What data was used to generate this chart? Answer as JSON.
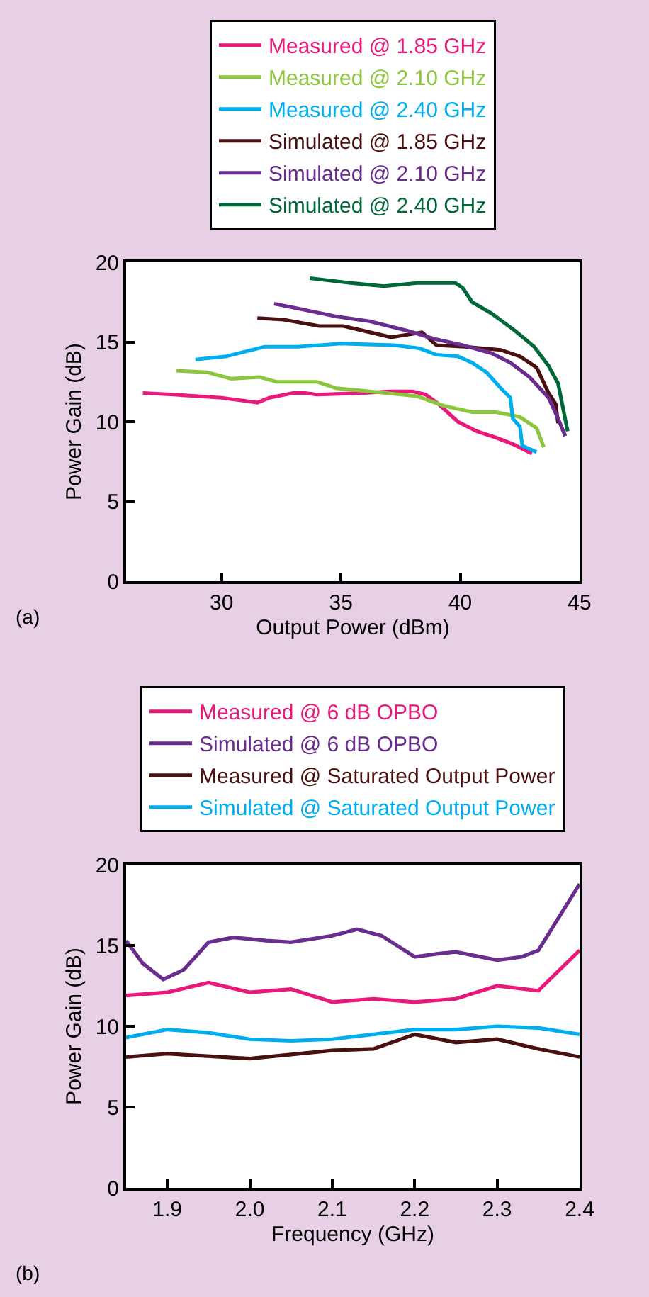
{
  "chart_data": [
    {
      "type": "line",
      "xlabel": "Output Power (dBm)",
      "ylabel": "Power Gain (dB)",
      "xlim": [
        26,
        45
      ],
      "xticks": [
        30,
        35,
        40,
        45
      ],
      "ylim": [
        0,
        20
      ],
      "yticks": [
        0,
        5,
        10,
        15,
        20
      ],
      "legend": "top",
      "annotations": [
        "(a)"
      ],
      "series": [
        {
          "name": "Measured @ 1.85 GHz",
          "color": "#e8197a",
          "x": [
            26.7,
            28,
            29,
            30,
            31,
            31.5,
            32,
            33,
            33.5,
            34,
            36,
            37,
            38,
            38.55,
            39.1,
            39.9,
            40.7,
            41.5,
            42.2,
            43.0
          ],
          "values": [
            11.8,
            11.7,
            11.6,
            11.5,
            11.3,
            11.2,
            11.5,
            11.8,
            11.8,
            11.7,
            11.8,
            11.9,
            11.9,
            11.7,
            11.1,
            10.0,
            9.4,
            9.0,
            8.6,
            8.0
          ]
        },
        {
          "name": "Measured @ 2.10 GHz",
          "color": "#8cc63f",
          "x": [
            28.1,
            29.4,
            30.4,
            31.6,
            32.3,
            34.0,
            34.8,
            36.2,
            38.2,
            39.3,
            40.5,
            41.5,
            42.5,
            43.2,
            43.5
          ],
          "values": [
            13.2,
            13.1,
            12.7,
            12.8,
            12.5,
            12.5,
            12.1,
            11.9,
            11.6,
            11.0,
            10.6,
            10.6,
            10.3,
            9.6,
            8.4
          ]
        },
        {
          "name": "Measured @ 2.40 GHz",
          "color": "#00aeef",
          "x": [
            28.9,
            30.2,
            31.8,
            33.2,
            35.0,
            37.2,
            38.3,
            39.0,
            39.9,
            40.5,
            41.1,
            41.7,
            42.1,
            42.2,
            42.5,
            42.6,
            43.2
          ],
          "values": [
            13.9,
            14.1,
            14.7,
            14.7,
            14.9,
            14.8,
            14.6,
            14.2,
            14.1,
            13.7,
            13.1,
            12.1,
            11.5,
            10.2,
            9.7,
            8.5,
            8.1
          ]
        },
        {
          "name": "Simulated @ 1.85 GHz",
          "color": "#4a1010",
          "x": [
            31.5,
            32.6,
            34.1,
            35.1,
            37.1,
            38.4,
            39.0,
            40.2,
            41.7,
            42.5,
            43.2,
            43.7,
            44.0,
            44.1
          ],
          "values": [
            16.5,
            16.4,
            16.0,
            16.0,
            15.3,
            15.6,
            14.8,
            14.7,
            14.5,
            14.1,
            13.4,
            11.8,
            11.1,
            9.9
          ]
        },
        {
          "name": "Simulated @ 2.10 GHz",
          "color": "#6a2c8e",
          "x": [
            32.2,
            33.2,
            34.8,
            36.2,
            37.8,
            38.9,
            40.1,
            41.3,
            42.1,
            42.9,
            43.7,
            44.1,
            44.4
          ],
          "values": [
            17.4,
            17.1,
            16.6,
            16.3,
            15.7,
            15.2,
            14.8,
            14.3,
            13.7,
            12.8,
            11.5,
            10.2,
            9.1
          ]
        },
        {
          "name": "Simulated @ 2.40 GHz",
          "color": "#006838",
          "x": [
            33.7,
            35.4,
            36.8,
            38.2,
            39.8,
            40.1,
            40.5,
            41.3,
            42.3,
            43.1,
            43.7,
            44.1,
            44.5
          ],
          "values": [
            19.0,
            18.7,
            18.5,
            18.7,
            18.7,
            18.4,
            17.5,
            16.8,
            15.7,
            14.7,
            13.5,
            12.4,
            9.4
          ]
        }
      ]
    },
    {
      "type": "line",
      "xlabel": "Frequency (GHz)",
      "ylabel": "Power Gain (dB)",
      "xlim": [
        1.85,
        2.4
      ],
      "xticks": [
        1.9,
        {
          "value": 2.0,
          "label": "2.0"
        },
        2.1,
        2.2,
        2.3,
        2.4
      ],
      "ylim": [
        0,
        20
      ],
      "yticks": [
        0,
        5,
        10,
        15,
        20
      ],
      "legend": "top",
      "annotations": [
        "(b)"
      ],
      "series": [
        {
          "name": "Measured @ 6 dB OPBO",
          "color": "#e8197a",
          "x": [
            1.85,
            1.9,
            1.95,
            2.0,
            2.05,
            2.1,
            2.15,
            2.2,
            2.25,
            2.3,
            2.35,
            2.4
          ],
          "values": [
            11.9,
            12.1,
            12.7,
            12.1,
            12.3,
            11.5,
            11.7,
            11.5,
            11.7,
            12.5,
            12.2,
            14.7
          ]
        },
        {
          "name": "Simulated @ 6 dB OPBO",
          "color": "#6a2c8e",
          "x": [
            1.85,
            1.87,
            1.895,
            1.92,
            1.95,
            1.98,
            2.02,
            2.05,
            2.1,
            2.13,
            2.16,
            2.2,
            2.23,
            2.25,
            2.3,
            2.33,
            2.35,
            2.4
          ],
          "values": [
            15.3,
            13.9,
            12.9,
            13.5,
            15.2,
            15.5,
            15.3,
            15.2,
            15.6,
            16.0,
            15.6,
            14.3,
            14.5,
            14.6,
            14.1,
            14.3,
            14.7,
            18.8
          ]
        },
        {
          "name": "Measured @ Saturated Output Power",
          "color": "#4a1010",
          "x": [
            1.85,
            1.9,
            2.0,
            2.1,
            2.15,
            2.2,
            2.25,
            2.3,
            2.35,
            2.4
          ],
          "values": [
            8.1,
            8.3,
            8.0,
            8.5,
            8.6,
            9.5,
            9.0,
            9.2,
            8.6,
            8.1
          ]
        },
        {
          "name": "Simulated @ Saturated Output Power",
          "color": "#00aeef",
          "x": [
            1.85,
            1.9,
            1.95,
            2.0,
            2.05,
            2.1,
            2.15,
            2.2,
            2.25,
            2.3,
            2.35,
            2.4
          ],
          "values": [
            9.3,
            9.8,
            9.6,
            9.2,
            9.1,
            9.2,
            9.5,
            9.8,
            9.8,
            10.0,
            9.9,
            9.5
          ]
        }
      ]
    }
  ]
}
